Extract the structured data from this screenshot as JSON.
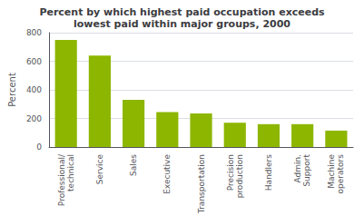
{
  "chart_data": {
    "type": "bar",
    "title": "Percent by which highest paid occupation exceeds\nlowest paid within major groups, 2000",
    "ylabel": "Percent",
    "categories": [
      "Professional/\ntechnical",
      "Service",
      "Sales",
      "Executive",
      "Transportation",
      "Precision\nproduction",
      "Handlers",
      "Admin.\nSupport",
      "Machine\noperators"
    ],
    "values": [
      750,
      640,
      330,
      245,
      235,
      170,
      160,
      160,
      115
    ],
    "color": "#8DB600",
    "ylim": [
      0,
      800
    ],
    "yticks": [
      0,
      200,
      400,
      600,
      800
    ],
    "grid": true
  }
}
